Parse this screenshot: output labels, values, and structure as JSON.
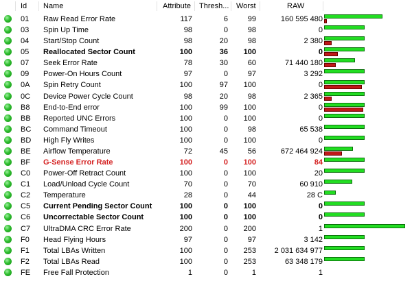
{
  "header": {
    "id": "Id",
    "name": "Name",
    "attribute": "Attribute",
    "threshold": "Thresh...",
    "worst": "Worst",
    "raw": "RAW"
  },
  "rows": [
    {
      "id": "01",
      "name": "Raw Read Error Rate",
      "attr": "117",
      "thr": "6",
      "worst": "99",
      "raw": "160 595 480",
      "style": "",
      "green": 0.72,
      "red": 0.03
    },
    {
      "id": "03",
      "name": "Spin Up Time",
      "attr": "98",
      "thr": "0",
      "worst": "98",
      "raw": "0",
      "style": "",
      "green": 0.5,
      "red": 0
    },
    {
      "id": "04",
      "name": "Start/Stop Count",
      "attr": "98",
      "thr": "20",
      "worst": "98",
      "raw": "2 380",
      "style": "",
      "green": 0.5,
      "red": 0.09
    },
    {
      "id": "05",
      "name": "Reallocated Sector Count",
      "attr": "100",
      "thr": "36",
      "worst": "100",
      "raw": "0",
      "style": "bold",
      "green": 0.5,
      "red": 0.17
    },
    {
      "id": "07",
      "name": "Seek Error Rate",
      "attr": "78",
      "thr": "30",
      "worst": "60",
      "raw": "71 440 180",
      "style": "",
      "green": 0.38,
      "red": 0.14
    },
    {
      "id": "09",
      "name": "Power-On Hours Count",
      "attr": "97",
      "thr": "0",
      "worst": "97",
      "raw": "3 292",
      "style": "",
      "green": 0.5,
      "red": 0
    },
    {
      "id": "0A",
      "name": "Spin Retry Count",
      "attr": "100",
      "thr": "97",
      "worst": "100",
      "raw": "0",
      "style": "",
      "green": 0.5,
      "red": 0.47
    },
    {
      "id": "0C",
      "name": "Device Power Cycle Count",
      "attr": "98",
      "thr": "20",
      "worst": "98",
      "raw": "2 365",
      "style": "",
      "green": 0.5,
      "red": 0.09
    },
    {
      "id": "B8",
      "name": "End-to-End error",
      "attr": "100",
      "thr": "99",
      "worst": "100",
      "raw": "0",
      "style": "",
      "green": 0.5,
      "red": 0.48
    },
    {
      "id": "BB",
      "name": "Reported UNC Errors",
      "attr": "100",
      "thr": "0",
      "worst": "100",
      "raw": "0",
      "style": "",
      "green": 0.5,
      "red": 0
    },
    {
      "id": "BC",
      "name": "Command Timeout",
      "attr": "100",
      "thr": "0",
      "worst": "98",
      "raw": "65 538",
      "style": "",
      "green": 0.5,
      "red": 0
    },
    {
      "id": "BD",
      "name": "High Fly Writes",
      "attr": "100",
      "thr": "0",
      "worst": "100",
      "raw": "0",
      "style": "",
      "green": 0.5,
      "red": 0
    },
    {
      "id": "BE",
      "name": "Airflow Temperature",
      "attr": "72",
      "thr": "45",
      "worst": "56",
      "raw": "672 464 924",
      "style": "",
      "green": 0.36,
      "red": 0.22
    },
    {
      "id": "BF",
      "name": "G-Sense Error Rate",
      "attr": "100",
      "thr": "0",
      "worst": "100",
      "raw": "84",
      "style": "red",
      "green": 0.5,
      "red": 0
    },
    {
      "id": "C0",
      "name": "Power-Off Retract Count",
      "attr": "100",
      "thr": "0",
      "worst": "100",
      "raw": "20",
      "style": "",
      "green": 0.5,
      "red": 0
    },
    {
      "id": "C1",
      "name": "Load/Unload Cycle Count",
      "attr": "70",
      "thr": "0",
      "worst": "70",
      "raw": "60 910",
      "style": "",
      "green": 0.35,
      "red": 0
    },
    {
      "id": "C2",
      "name": "Temperature",
      "attr": "28",
      "thr": "0",
      "worst": "44",
      "raw": "28 C",
      "style": "",
      "green": 0.14,
      "red": 0
    },
    {
      "id": "C5",
      "name": "Current Pending Sector Count",
      "attr": "100",
      "thr": "0",
      "worst": "100",
      "raw": "0",
      "style": "bold",
      "green": 0.5,
      "red": 0
    },
    {
      "id": "C6",
      "name": "Uncorrectable Sector Count",
      "attr": "100",
      "thr": "0",
      "worst": "100",
      "raw": "0",
      "style": "bold",
      "green": 0.5,
      "red": 0
    },
    {
      "id": "C7",
      "name": "UltraDMA CRC Error Rate",
      "attr": "200",
      "thr": "0",
      "worst": "200",
      "raw": "1",
      "style": "",
      "green": 1.0,
      "red": 0
    },
    {
      "id": "F0",
      "name": "Head Flying Hours",
      "attr": "97",
      "thr": "0",
      "worst": "97",
      "raw": "3 142",
      "style": "",
      "green": 0.5,
      "red": 0
    },
    {
      "id": "F1",
      "name": "Total LBAs Written",
      "attr": "100",
      "thr": "0",
      "worst": "253",
      "raw": "2 031 634 977",
      "style": "",
      "green": 0.5,
      "red": 0
    },
    {
      "id": "F2",
      "name": "Total LBAs Read",
      "attr": "100",
      "thr": "0",
      "worst": "253",
      "raw": "63 348 179",
      "style": "",
      "green": 0.5,
      "red": 0
    },
    {
      "id": "FE",
      "name": "Free Fall Protection",
      "attr": "1",
      "thr": "0",
      "worst": "1",
      "raw": "1",
      "style": "",
      "green": 0.0,
      "red": 0
    }
  ],
  "colors": {
    "status_ok": "#2fbe2f",
    "bar_green": "#22dd22",
    "bar_red": "#c01818",
    "critical_text": "#d42020"
  },
  "icons": {
    "status": "status-ok-icon"
  }
}
